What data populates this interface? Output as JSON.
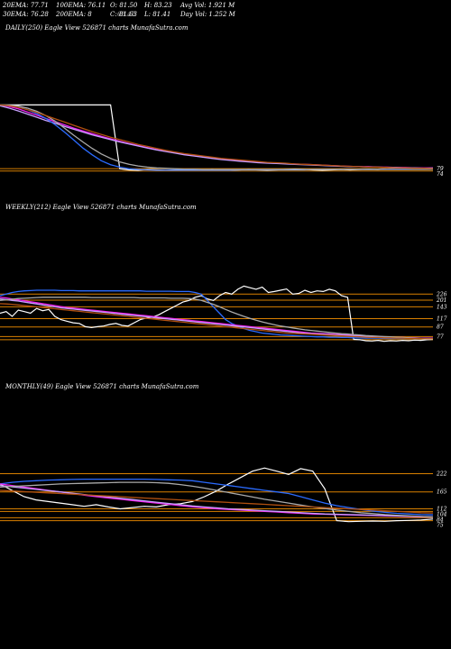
{
  "header": {
    "ema20": "20EMA: 77.71",
    "ema30": "30EMA: 76.28",
    "ema100": "100EMA: 76.11",
    "ema200": "200EMA: 8",
    "open": "O: 81.50",
    "close": "C: 81.63",
    "close_overlap": "68.48",
    "high": "H: 83.23",
    "low": "L: 81.41",
    "avg_vol": "Avg Vol: 1.921 M",
    "day_vol": "Day Vol: 1.252 M"
  },
  "panels": {
    "daily": {
      "title": "DAILY(250) Eagle  View  526871 charts MunafaSutra.com"
    },
    "weekly": {
      "title": "WEEKLY(212) Eagle  View  526871 charts MunafaSutra.com"
    },
    "monthly": {
      "title": "MONTHLY(49) Eagle  View  526871 charts MunafaSutra.com"
    }
  },
  "chart_data": [
    {
      "type": "line",
      "name": "daily",
      "ylim": [
        60,
        250
      ],
      "hlines": [
        {
          "value": 80,
          "color": "#d98000"
        },
        {
          "value": 74,
          "color": "#d98000"
        }
      ],
      "right_labels": [
        "79",
        "74"
      ],
      "series": [
        {
          "color": "#ffffff",
          "values": [
            240,
            240,
            240,
            240,
            240,
            240,
            240,
            240,
            240,
            240,
            240,
            240,
            240,
            80,
            77,
            76,
            78,
            77,
            76,
            77,
            78,
            77,
            76,
            78,
            77,
            76,
            77,
            78,
            77,
            76,
            77,
            78,
            79,
            78,
            77,
            76,
            77,
            78,
            77,
            78,
            79,
            78,
            79,
            80,
            79,
            80,
            81,
            82
          ]
        },
        {
          "color": "#ee22ee",
          "values": [
            240,
            236,
            230,
            222,
            214,
            206,
            198,
            190,
            182,
            175,
            168,
            161,
            155,
            149,
            143,
            138,
            133,
            128,
            124,
            120,
            116,
            113,
            110,
            107,
            104,
            102,
            100,
            98,
            96,
            95,
            94,
            93,
            92,
            91,
            90,
            89,
            88,
            87,
            86,
            85,
            85,
            84,
            84,
            83,
            83,
            82,
            82,
            82
          ]
        },
        {
          "color": "#c8a0ff",
          "values": [
            238,
            232,
            225,
            217,
            209,
            201,
            194,
            186,
            179,
            172,
            165,
            159,
            153,
            147,
            142,
            137,
            132,
            127,
            123,
            119,
            115,
            112,
            109,
            106,
            103,
            101,
            99,
            97,
            95,
            94,
            93,
            92,
            91,
            90,
            89,
            88,
            87,
            86,
            85,
            85,
            84,
            84,
            83,
            83,
            82,
            82,
            81,
            81
          ]
        },
        {
          "color": "#2b6bff",
          "values": [
            240,
            238,
            235,
            228,
            218,
            206,
            190,
            172,
            152,
            132,
            115,
            100,
            90,
            84,
            80,
            78,
            77,
            76,
            76,
            76,
            76,
            76,
            76,
            76,
            76,
            76,
            77,
            77,
            77,
            77,
            77,
            77,
            77,
            77,
            78,
            78,
            78,
            78,
            78,
            78,
            78,
            78,
            79,
            79,
            79,
            79,
            79,
            79
          ]
        },
        {
          "color": "#aaaaaa",
          "values": [
            240,
            239,
            237,
            232,
            224,
            213,
            199,
            182,
            164,
            147,
            131,
            117,
            106,
            97,
            91,
            87,
            84,
            82,
            81,
            80,
            79,
            79,
            78,
            78,
            78,
            78,
            78,
            78,
            78,
            78,
            78,
            78,
            78,
            78,
            78,
            78,
            78,
            78,
            78,
            78,
            78,
            78,
            78,
            78,
            78,
            78,
            78,
            78
          ]
        },
        {
          "color": "#b05010",
          "values": [
            240,
            238,
            234,
            228,
            221,
            213,
            205,
            197,
            189,
            181,
            173,
            166,
            159,
            153,
            147,
            141,
            136,
            131,
            126,
            122,
            118,
            115,
            112,
            109,
            106,
            104,
            102,
            100,
            98,
            96,
            95,
            94,
            92,
            91,
            90,
            89,
            88,
            87,
            86,
            85,
            84,
            84,
            83,
            82,
            82,
            81,
            81,
            80
          ]
        }
      ]
    },
    {
      "type": "line",
      "name": "weekly",
      "ylim": [
        40,
        280
      ],
      "hlines": [
        {
          "value": 220,
          "color": "#d98000"
        },
        {
          "value": 201,
          "color": "#d98000"
        },
        {
          "value": 180,
          "color": "#d98000"
        },
        {
          "value": 143,
          "color": "#d98000"
        },
        {
          "value": 117,
          "color": "#d98000"
        },
        {
          "value": 87,
          "color": "#d98000"
        },
        {
          "value": 77,
          "color": "#d98000"
        }
      ],
      "right_labels": [
        "226",
        "201",
        "143",
        "117",
        "87",
        "77"
      ],
      "series": [
        {
          "color": "#ffffff",
          "values": [
            160,
            165,
            150,
            170,
            165,
            160,
            175,
            168,
            172,
            150,
            140,
            135,
            130,
            128,
            118,
            115,
            118,
            120,
            125,
            128,
            122,
            120,
            130,
            140,
            145,
            148,
            155,
            165,
            175,
            185,
            195,
            200,
            210,
            215,
            205,
            200,
            215,
            225,
            220,
            235,
            245,
            240,
            235,
            242,
            225,
            228,
            232,
            236,
            220,
            222,
            232,
            225,
            230,
            228,
            235,
            230,
            215,
            210,
            78,
            77,
            74,
            73,
            75,
            72,
            74,
            73,
            75,
            74,
            76,
            75,
            77,
            78
          ]
        },
        {
          "color": "#2b6bff",
          "values": [
            215,
            220,
            225,
            228,
            230,
            231,
            232,
            232,
            232,
            232,
            231,
            231,
            231,
            230,
            230,
            230,
            230,
            230,
            230,
            230,
            230,
            230,
            230,
            230,
            229,
            229,
            229,
            229,
            229,
            228,
            228,
            228,
            225,
            220,
            200,
            180,
            160,
            140,
            128,
            120,
            112,
            106,
            102,
            98,
            96,
            94,
            92,
            91,
            90,
            89,
            88,
            87,
            86,
            86,
            85,
            85,
            84,
            84,
            83,
            83,
            82,
            82,
            82,
            81,
            81,
            81,
            81,
            81,
            81,
            81,
            81,
            81
          ]
        },
        {
          "color": "#ee22ee",
          "values": [
            210,
            208,
            205,
            202,
            199,
            196,
            193,
            190,
            187,
            184,
            181,
            178,
            176,
            174,
            172,
            170,
            168,
            166,
            164,
            162,
            160,
            158,
            156,
            154,
            152,
            150,
            148,
            146,
            144,
            142,
            140,
            138,
            136,
            134,
            132,
            130,
            128,
            126,
            124,
            122,
            120,
            118,
            116,
            114,
            112,
            110,
            108,
            106,
            104,
            102,
            100,
            98,
            97,
            96,
            95,
            94,
            93,
            92,
            91,
            90,
            89,
            88,
            87,
            86,
            85,
            84,
            84,
            83,
            83,
            82,
            82,
            82
          ]
        },
        {
          "color": "#c8a0ff",
          "values": [
            205,
            203,
            200,
            198,
            195,
            192,
            189,
            186,
            183,
            180,
            177,
            175,
            173,
            171,
            169,
            167,
            165,
            163,
            161,
            159,
            157,
            155,
            153,
            151,
            149,
            147,
            145,
            143,
            141,
            139,
            137,
            135,
            133,
            131,
            129,
            127,
            125,
            123,
            121,
            119,
            117,
            115,
            113,
            111,
            109,
            107,
            105,
            103,
            101,
            99,
            97,
            96,
            95,
            94,
            93,
            92,
            91,
            90,
            89,
            88,
            87,
            86,
            85,
            84,
            84,
            83,
            83,
            82,
            82,
            81,
            81,
            81
          ]
        },
        {
          "color": "#aaaaaa",
          "values": [
            200,
            202,
            204,
            206,
            207,
            208,
            209,
            210,
            210,
            210,
            210,
            210,
            210,
            210,
            210,
            209,
            209,
            209,
            209,
            209,
            209,
            209,
            209,
            208,
            208,
            208,
            208,
            208,
            207,
            207,
            207,
            206,
            204,
            200,
            194,
            188,
            180,
            172,
            164,
            157,
            150,
            144,
            138,
            133,
            128,
            124,
            120,
            117,
            114,
            111,
            108,
            106,
            104,
            102,
            100,
            98,
            96,
            95,
            93,
            92,
            90,
            89,
            88,
            87,
            86,
            85,
            84,
            83,
            82,
            81,
            80,
            80
          ]
        },
        {
          "color": "#b05010",
          "values": [
            190,
            189,
            188,
            186,
            184,
            182,
            180,
            178,
            176,
            174,
            172,
            170,
            168,
            166,
            164,
            162,
            160,
            158,
            156,
            154,
            152,
            150,
            148,
            146,
            144,
            142,
            140,
            138,
            136,
            134,
            132,
            130,
            128,
            126,
            124,
            122,
            120,
            118,
            116,
            114,
            112,
            110,
            108,
            106,
            104,
            102,
            100,
            98,
            97,
            96,
            95,
            94,
            93,
            92,
            91,
            90,
            89,
            88,
            87,
            86,
            85,
            84,
            84,
            83,
            83,
            82,
            82,
            81,
            81,
            81,
            80,
            80
          ]
        }
      ]
    },
    {
      "type": "line",
      "name": "monthly",
      "ylim": [
        40,
        280
      ],
      "hlines": [
        {
          "value": 222,
          "color": "#d98000"
        },
        {
          "value": 165,
          "color": "#d98000"
        },
        {
          "value": 112,
          "color": "#d98000"
        },
        {
          "value": 104,
          "color": "#d98000"
        },
        {
          "value": 84,
          "color": "#d98000"
        },
        {
          "value": 75,
          "color": "#d98000"
        }
      ],
      "right_labels": [
        "222",
        "165",
        "112",
        "104",
        "84",
        "75"
      ],
      "series": [
        {
          "color": "#ffffff",
          "values": [
            190,
            170,
            150,
            140,
            135,
            130,
            125,
            120,
            125,
            118,
            112,
            116,
            120,
            118,
            125,
            128,
            135,
            150,
            168,
            190,
            210,
            230,
            240,
            230,
            220,
            238,
            230,
            175,
            75,
            72,
            73,
            74,
            73,
            75,
            76,
            77,
            80
          ]
        },
        {
          "color": "#2b6bff",
          "values": [
            190,
            195,
            198,
            200,
            202,
            203,
            204,
            205,
            205,
            205,
            205,
            205,
            205,
            204,
            203,
            202,
            200,
            195,
            190,
            185,
            180,
            175,
            170,
            165,
            160,
            150,
            140,
            130,
            122,
            116,
            110,
            105,
            101,
            98,
            96,
            94,
            93
          ]
        },
        {
          "color": "#ee22ee",
          "values": [
            190,
            185,
            180,
            175,
            170,
            165,
            160,
            155,
            150,
            146,
            142,
            138,
            134,
            130,
            126,
            122,
            118,
            115,
            112,
            110,
            108,
            106,
            104,
            102,
            100,
            98,
            96,
            95,
            94,
            93,
            92,
            91,
            90,
            89,
            88,
            87,
            86
          ]
        },
        {
          "color": "#c8a0ff",
          "values": [
            185,
            181,
            177,
            173,
            169,
            165,
            161,
            157,
            153,
            149,
            145,
            141,
            137,
            133,
            129,
            125,
            121,
            118,
            115,
            112,
            110,
            108,
            106,
            104,
            102,
            100,
            98,
            96,
            95,
            94,
            93,
            92,
            91,
            90,
            89,
            88,
            87
          ]
        },
        {
          "color": "#aaaaaa",
          "values": [
            180,
            182,
            184,
            186,
            188,
            190,
            191,
            192,
            193,
            194,
            195,
            195,
            195,
            194,
            192,
            188,
            183,
            177,
            170,
            163,
            156,
            149,
            142,
            136,
            130,
            124,
            118,
            113,
            108,
            104,
            100,
            97,
            94,
            92,
            90,
            88,
            86
          ]
        },
        {
          "color": "#b05010",
          "values": [
            170,
            168,
            166,
            164,
            162,
            160,
            158,
            156,
            154,
            152,
            150,
            148,
            146,
            144,
            142,
            140,
            138,
            136,
            134,
            132,
            130,
            128,
            126,
            124,
            122,
            120,
            118,
            116,
            114,
            112,
            110,
            108,
            106,
            104,
            102,
            100,
            99
          ]
        }
      ]
    }
  ]
}
